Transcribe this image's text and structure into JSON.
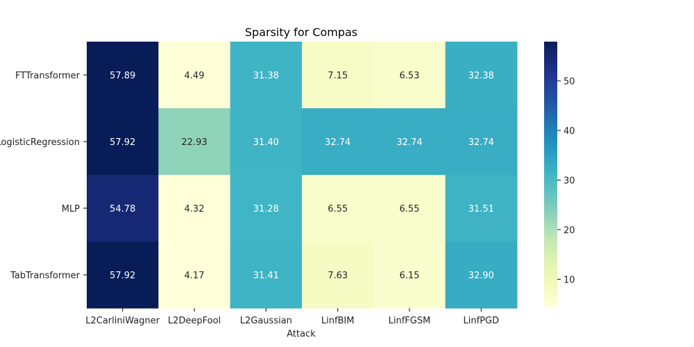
{
  "chart_data": {
    "type": "heatmap",
    "title": "Sparsity for Compas",
    "xlabel": "Attack",
    "ylabel": "",
    "x_categories": [
      "L2CarliniWagner",
      "L2DeepFool",
      "L2Gaussian",
      "LinfBIM",
      "LinfFGSM",
      "LinfPGD"
    ],
    "y_categories": [
      "FTTransformer",
      "LogisticRegression",
      "MLP",
      "TabTransformer"
    ],
    "values": [
      [
        57.89,
        4.49,
        31.38,
        7.15,
        6.53,
        32.38
      ],
      [
        57.92,
        22.93,
        31.4,
        32.74,
        32.74,
        32.74
      ],
      [
        54.78,
        4.32,
        31.28,
        6.55,
        6.55,
        31.51
      ],
      [
        57.92,
        4.17,
        31.41,
        7.63,
        6.15,
        32.9
      ]
    ],
    "value_labels": [
      [
        "57.89",
        "4.49",
        "31.38",
        "7.15",
        "6.53",
        "32.38"
      ],
      [
        "57.92",
        "22.93",
        "31.40",
        "32.74",
        "32.74",
        "32.74"
      ],
      [
        "54.78",
        "4.32",
        "31.28",
        "6.55",
        "6.55",
        "31.51"
      ],
      [
        "57.92",
        "4.17",
        "31.41",
        "7.63",
        "6.15",
        "32.90"
      ]
    ],
    "colormap": "YlGnBu",
    "color_range": [
      4.17,
      57.92
    ],
    "colorbar_ticks": [
      10,
      20,
      30,
      40,
      50
    ],
    "colorbar_tick_labels": [
      "10",
      "20",
      "30",
      "40",
      "50"
    ],
    "grid": false,
    "colorbar_placement": "right"
  }
}
